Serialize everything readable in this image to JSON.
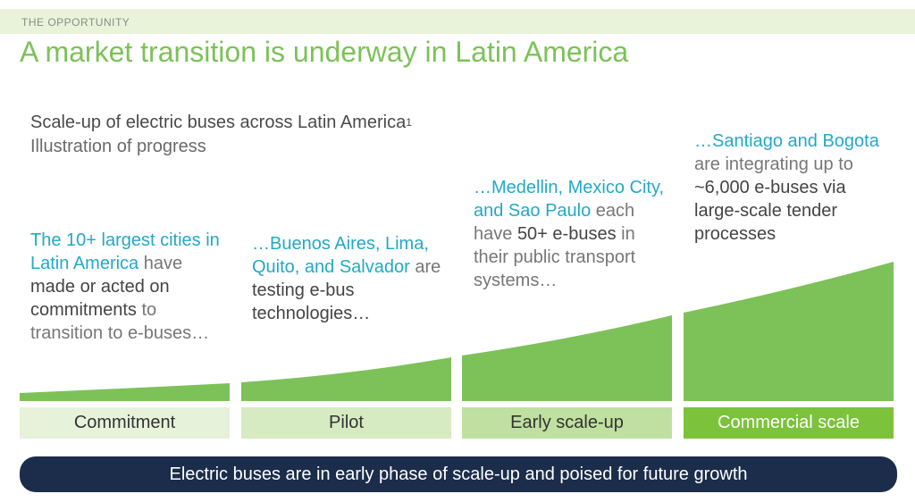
{
  "header": {
    "section_label": "THE OPPORTUNITY",
    "title": "A market transition is underway in Latin America"
  },
  "subtitle": {
    "main": "Scale-up of electric buses across Latin America",
    "footnote_marker": "1",
    "secondary": "Illustration of progress"
  },
  "stages": [
    {
      "label": "Commitment",
      "text": [
        {
          "t": "The 10+ largest cities in Latin America",
          "style": "hl"
        },
        {
          "t": " have ",
          "style": "muted"
        },
        {
          "t": "made or acted on commitments",
          "style": "bold"
        },
        {
          "t": " to transition to e-buses…",
          "style": "muted"
        }
      ]
    },
    {
      "label": "Pilot",
      "text": [
        {
          "t": "…Buenos Aires, Lima, Quito, and Salvador",
          "style": "hl"
        },
        {
          "t": " are ",
          "style": "muted"
        },
        {
          "t": "testing e-bus technologies…",
          "style": "bold"
        }
      ]
    },
    {
      "label": "Early scale-up",
      "text": [
        {
          "t": "…Medellin, Mexico City, and Sao Paulo",
          "style": "hl"
        },
        {
          "t": " each have ",
          "style": "muted"
        },
        {
          "t": "50+ e-buses",
          "style": "bold"
        },
        {
          "t": " in their public transport systems…",
          "style": "muted"
        }
      ]
    },
    {
      "label": "Commercial scale",
      "text": [
        {
          "t": "…Santiago and Bogota",
          "style": "hl"
        },
        {
          "t": " are integrating up to ",
          "style": "muted"
        },
        {
          "t": "~6,000 e-buses via large-scale tender processes",
          "style": "bold"
        }
      ]
    }
  ],
  "banner": {
    "text": "Electric buses are in early phase of scale-up and poised for future growth"
  },
  "colors": {
    "accent_green": "#7cc258",
    "highlight_blue": "#22a9c6",
    "banner_navy": "#1b2d4a",
    "stage_box_1": "#e6f2d9",
    "stage_box_2": "#d6ebc1",
    "stage_box_3": "#bfe0a0",
    "stage_box_4": "#7cc23a"
  }
}
